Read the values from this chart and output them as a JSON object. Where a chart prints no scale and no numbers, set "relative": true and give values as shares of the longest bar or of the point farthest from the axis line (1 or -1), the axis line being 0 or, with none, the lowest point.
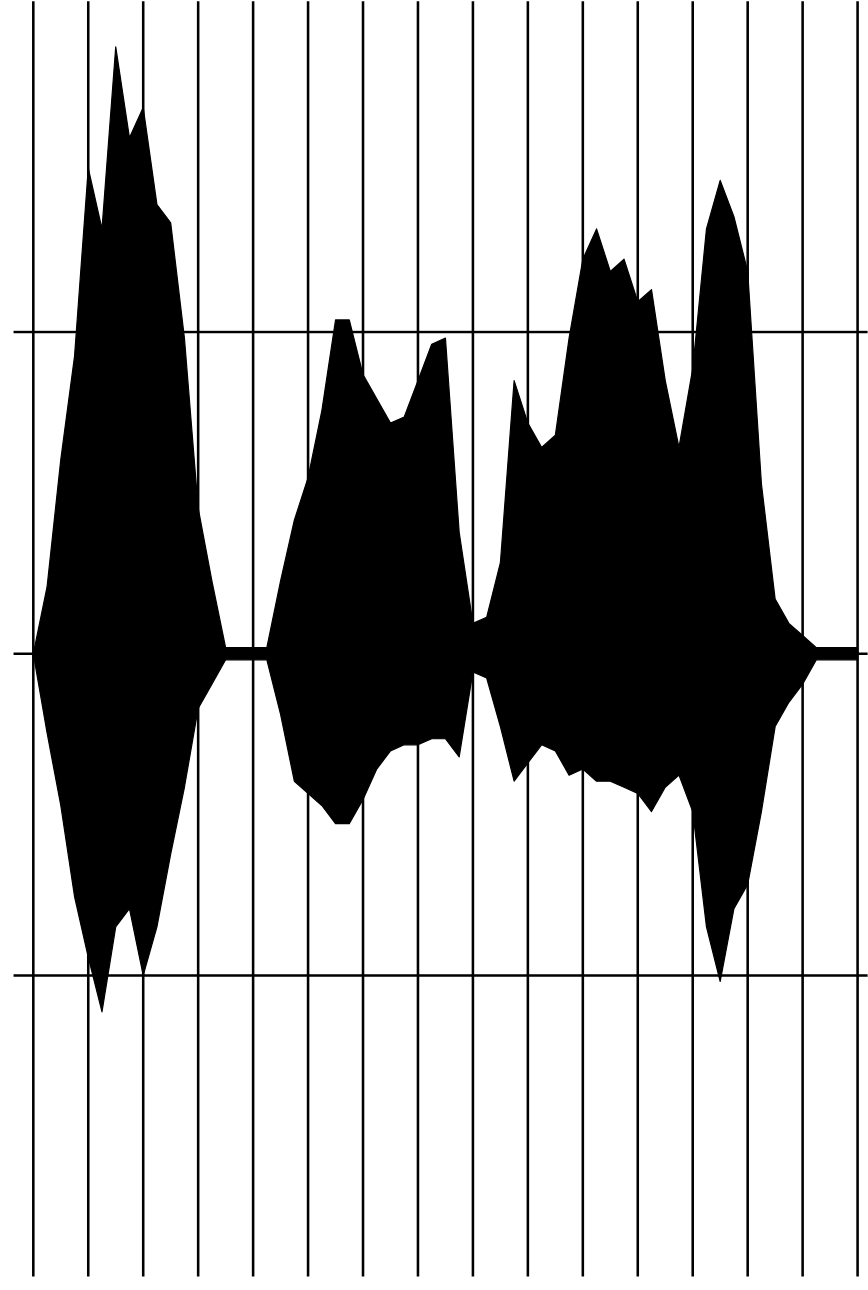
{
  "chart_data": {
    "type": "area",
    "relative": true,
    "grid": true,
    "categories": [
      null,
      null,
      null,
      null,
      null,
      null,
      null,
      null,
      null,
      null,
      null,
      null,
      null,
      null,
      null,
      null,
      null,
      null,
      null,
      null,
      null,
      null,
      null,
      null,
      null,
      null,
      null,
      null,
      null,
      null,
      null,
      null,
      null,
      null,
      null,
      null,
      null,
      null,
      null,
      null,
      null,
      null,
      null,
      null,
      null,
      null,
      null,
      null,
      null,
      null,
      null,
      null,
      null,
      null,
      null,
      null,
      null,
      null,
      null,
      null,
      null
    ],
    "series": [
      {
        "color": "#000000",
        "values": [
          0,
          0.11,
          0.32,
          0.49,
          0.8,
          0.7,
          1.0,
          0.85,
          0.9,
          0.74,
          0.71,
          0.52,
          0.24,
          0.12,
          0.01,
          0.01,
          0.01,
          0.01,
          0.12,
          0.22,
          0.29,
          0.4,
          0.55,
          0.55,
          0.46,
          0.42,
          0.38,
          0.39,
          0.45,
          0.51,
          0.52,
          0.2,
          0.05,
          0.06,
          0.15,
          0.45,
          0.38,
          0.34,
          0.36,
          0.52,
          0.65,
          0.7,
          0.63,
          0.65,
          0.58,
          0.6,
          0.45,
          0.34,
          0.47,
          0.7,
          0.78,
          0.72,
          0.63,
          0.28,
          0.09,
          0.05,
          0.03,
          0.01,
          0.01,
          0.01,
          0.01
        ]
      },
      {
        "color": "#000000",
        "values": [
          0,
          -0.13,
          -0.25,
          -0.4,
          -0.5,
          -0.59,
          -0.45,
          -0.42,
          -0.53,
          -0.45,
          -0.33,
          -0.22,
          -0.09,
          -0.05,
          -0.01,
          -0.01,
          -0.01,
          -0.01,
          -0.1,
          -0.21,
          -0.23,
          -0.25,
          -0.28,
          -0.28,
          -0.24,
          -0.19,
          -0.16,
          -0.15,
          -0.15,
          -0.14,
          -0.14,
          -0.17,
          -0.03,
          -0.04,
          -0.12,
          -0.21,
          -0.18,
          -0.15,
          -0.16,
          -0.2,
          -0.19,
          -0.21,
          -0.21,
          -0.22,
          -0.23,
          -0.26,
          -0.22,
          -0.2,
          -0.26,
          -0.45,
          -0.54,
          -0.42,
          -0.38,
          -0.26,
          -0.12,
          -0.08,
          -0.05,
          -0.01,
          -0.01,
          -0.01,
          -0.01
        ]
      }
    ]
  }
}
